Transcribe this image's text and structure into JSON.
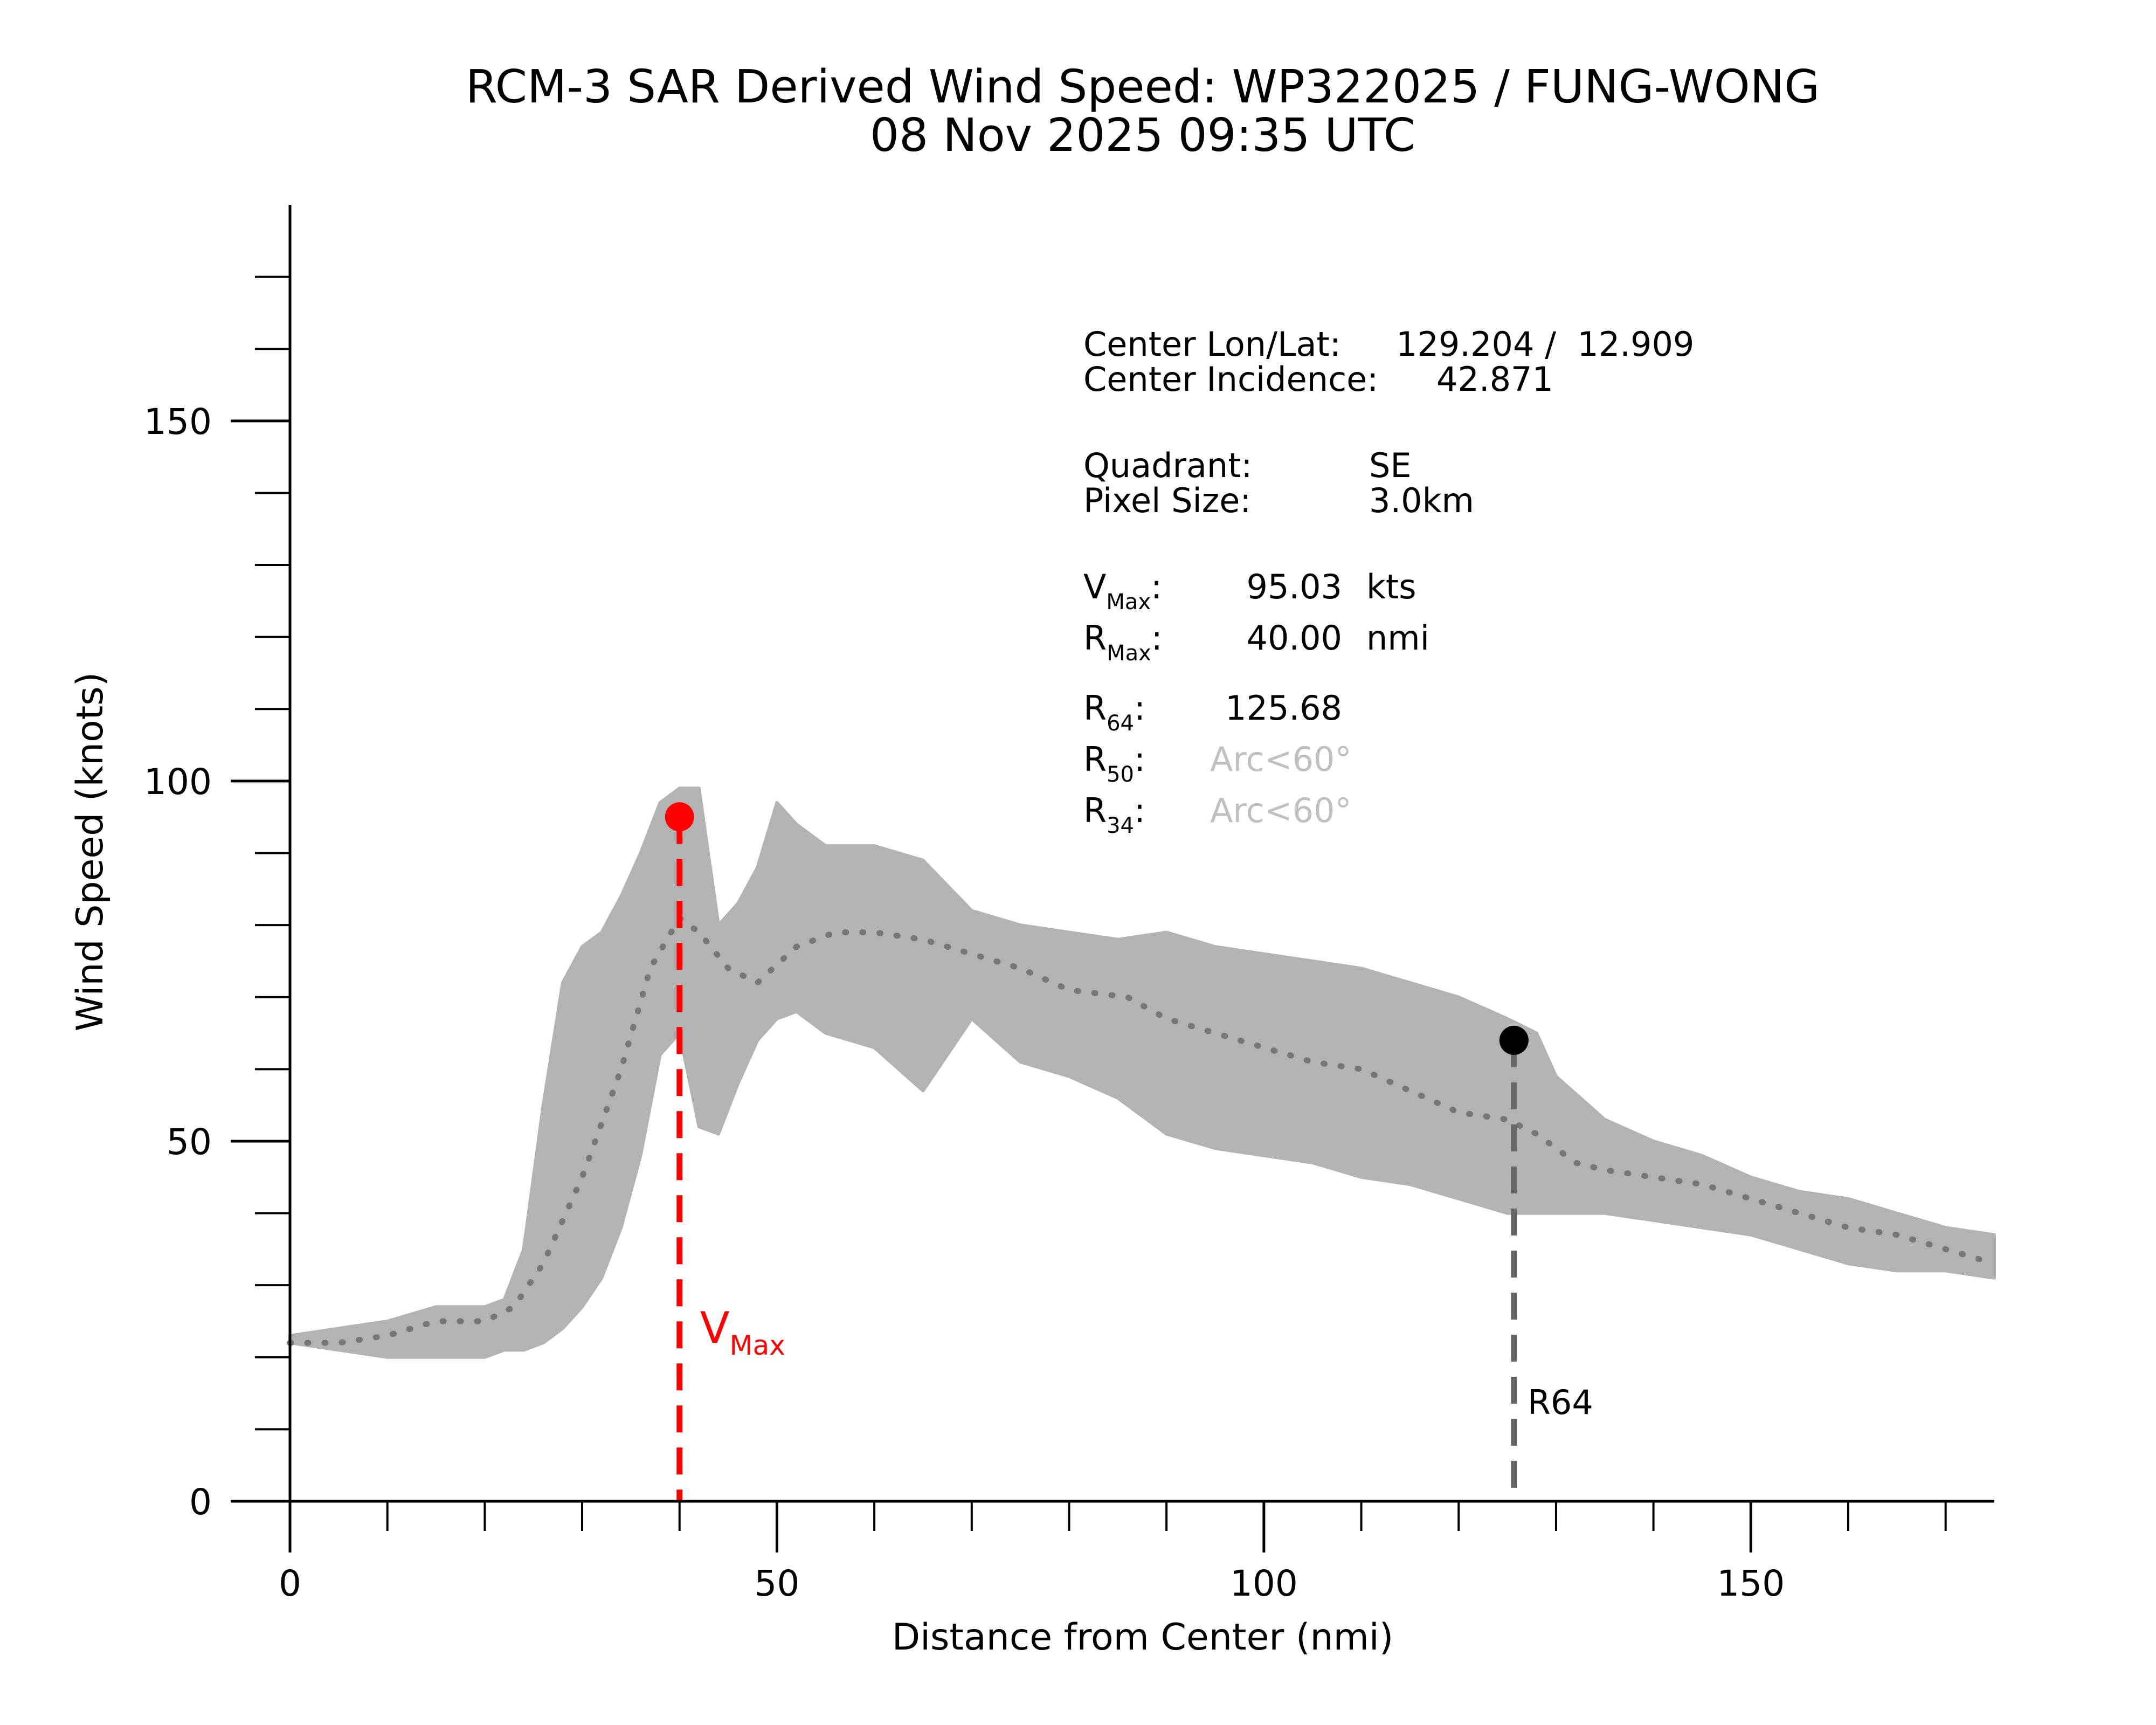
{
  "chart_data": {
    "type": "scatter",
    "title": "RCM-3 SAR Derived Wind Speed: WP322025 / FUNG-WONG",
    "subtitle": "08 Nov 2025 09:35 UTC",
    "xlabel": "Distance from Center (nmi)",
    "ylabel": "Wind Speed (knots)",
    "xlim": [
      0,
      175
    ],
    "ylim": [
      0,
      180
    ],
    "x_ticks": [
      0,
      50,
      100,
      150
    ],
    "y_ticks": [
      0,
      50,
      100,
      150
    ],
    "x_minor_step": 10,
    "y_minor_step": 10,
    "grid": false,
    "scatter_envelope": {
      "x": [
        0,
        5,
        10,
        15,
        20,
        22,
        24,
        26,
        28,
        30,
        32,
        34,
        36,
        38,
        40,
        42,
        44,
        46,
        48,
        50,
        52,
        55,
        60,
        65,
        70,
        75,
        80,
        85,
        90,
        95,
        100,
        105,
        110,
        115,
        120,
        125,
        128,
        130,
        135,
        140,
        145,
        150,
        155,
        160,
        165,
        170,
        175
      ],
      "upper": [
        23,
        24,
        25,
        27,
        27,
        28,
        35,
        55,
        72,
        77,
        79,
        84,
        90,
        97,
        99,
        99,
        80,
        83,
        88,
        97,
        94,
        91,
        91,
        89,
        82,
        80,
        79,
        78,
        79,
        77,
        76,
        75,
        74,
        72,
        70,
        67,
        65,
        59,
        53,
        50,
        48,
        45,
        43,
        42,
        40,
        38,
        37
      ],
      "lower": [
        22,
        21,
        20,
        20,
        20,
        21,
        21,
        22,
        24,
        27,
        31,
        38,
        48,
        62,
        65,
        52,
        51,
        58,
        64,
        67,
        68,
        65,
        63,
        57,
        67,
        61,
        59,
        56,
        51,
        49,
        48,
        47,
        45,
        44,
        42,
        40,
        40,
        40,
        40,
        39,
        38,
        37,
        35,
        33,
        32,
        32,
        31
      ]
    },
    "mean_profile": {
      "name": "mean",
      "x": [
        0,
        5,
        10,
        15,
        20,
        23,
        26,
        30,
        34,
        37,
        40,
        42,
        45,
        48,
        52,
        56,
        60,
        65,
        70,
        75,
        80,
        86,
        90,
        95,
        100,
        105,
        110,
        115,
        120,
        125,
        128,
        132,
        135,
        140,
        145,
        150,
        155,
        160,
        165,
        170,
        175
      ],
      "y": [
        22,
        22,
        23,
        25,
        25,
        27,
        33,
        45,
        60,
        74,
        81,
        79,
        74,
        72,
        77,
        79,
        79,
        78,
        76,
        74,
        71,
        70,
        67,
        65,
        63,
        61,
        60,
        57,
        54,
        53,
        51,
        47,
        46,
        45,
        44,
        42,
        40,
        38,
        37,
        35,
        33
      ]
    },
    "vmax_point": {
      "x": 40.0,
      "y": 95.03
    },
    "r64_point": {
      "x": 125.68,
      "y": 64
    },
    "vmax_label": {
      "main": "V",
      "sub": "Max"
    },
    "r64_label": "R64",
    "colors": {
      "scatter": "#b3b3b3",
      "mean_line": "#777777",
      "vmax": "#ff0000",
      "r64_line": "#666666",
      "r64_point": "#000000",
      "disabled_text": "#c0c0c0"
    }
  },
  "info": {
    "center_lonlat_label": "Center Lon/Lat:",
    "center_lonlat_value": "129.204 /  12.909",
    "center_incidence_label": "Center Incidence:",
    "center_incidence_value": "42.871",
    "quadrant_label": "Quadrant:",
    "quadrant_value": "SE",
    "pixel_size_label": "Pixel Size:",
    "pixel_size_value": "3.0km",
    "vmax_letter": "V",
    "vmax_sub": "Max",
    "vmax_colon": ":",
    "vmax_value": "95.03",
    "vmax_unit": "kts",
    "rmax_letter": "R",
    "rmax_sub": "Max",
    "rmax_colon": ":",
    "rmax_value": "40.00",
    "rmax_unit": "nmi",
    "r64_letter": "R",
    "r64_sub": "64",
    "r64_colon": ":",
    "r64_value": "125.68",
    "r50_letter": "R",
    "r50_sub": "50",
    "r50_colon": ":",
    "r50_value": "Arc<60°",
    "r34_letter": "R",
    "r34_sub": "34",
    "r34_colon": ":",
    "r34_value": "Arc<60°"
  }
}
